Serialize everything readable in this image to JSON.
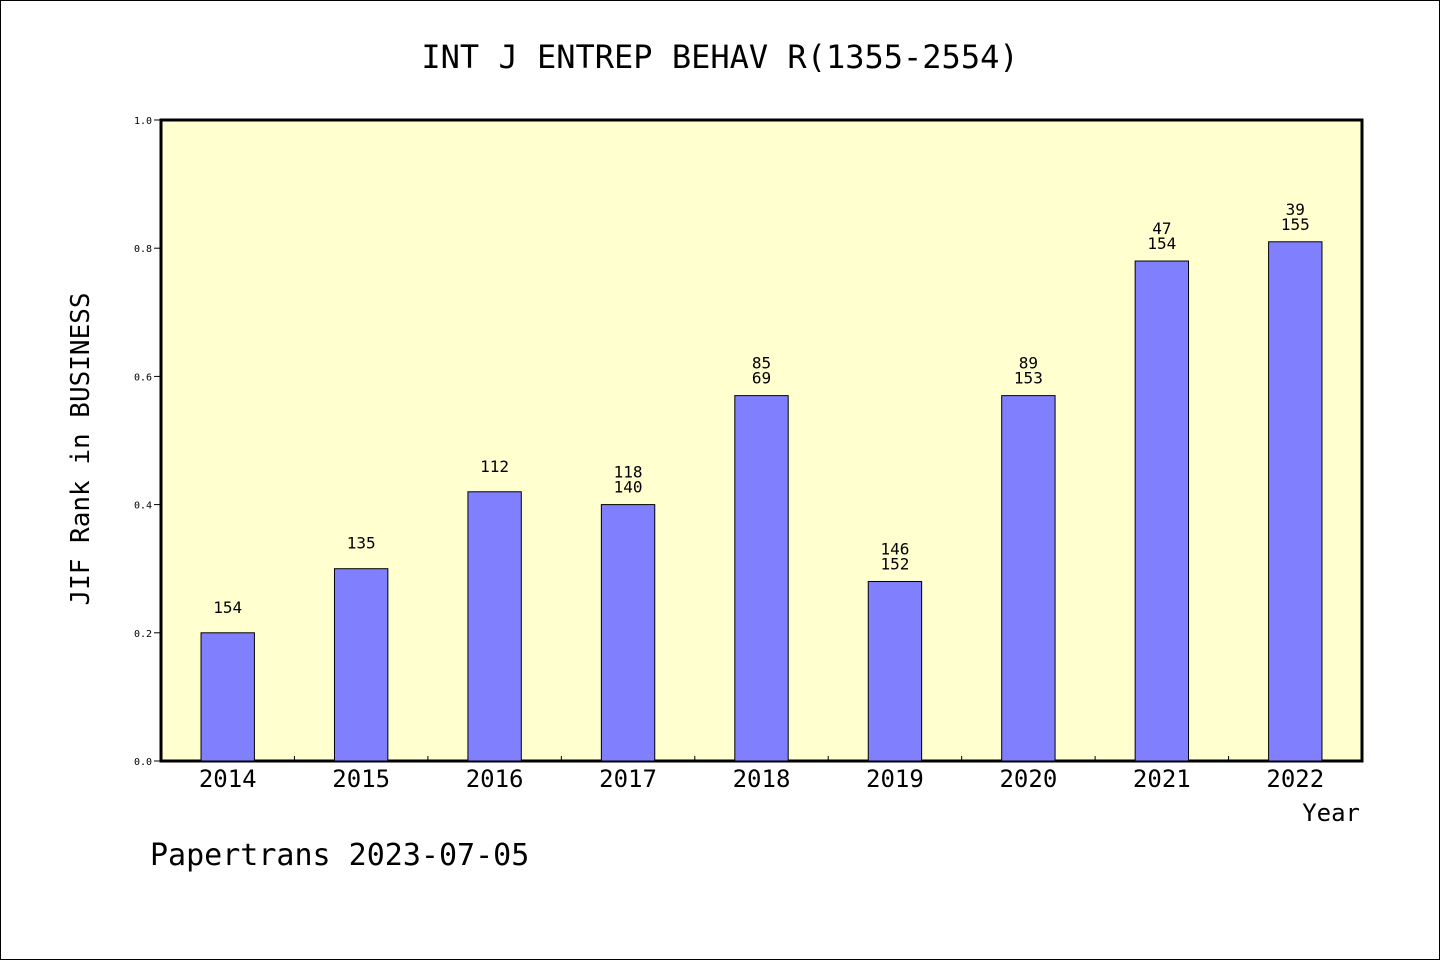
{
  "chart_data": {
    "type": "bar",
    "title": "INT J ENTREP BEHAV R(1355-2554)",
    "xlabel": "Year",
    "ylabel": "JIF Rank in BUSINESS",
    "ylim": [
      0.0,
      1.0
    ],
    "yticks": [
      "0.0",
      "0.2",
      "0.4",
      "0.6",
      "0.8",
      "1.0"
    ],
    "categories": [
      "2014",
      "2015",
      "2016",
      "2017",
      "2018",
      "2019",
      "2020",
      "2021",
      "2022"
    ],
    "values": [
      0.2,
      0.3,
      0.42,
      0.4,
      0.57,
      0.28,
      0.57,
      0.78,
      0.81
    ],
    "labels": [
      [
        "154"
      ],
      [
        "135"
      ],
      [
        "112"
      ],
      [
        "118",
        "140"
      ],
      [
        "85",
        "69"
      ],
      [
        "146",
        "152"
      ],
      [
        "89",
        "153"
      ],
      [
        "47",
        "154"
      ],
      [
        "39",
        "155"
      ]
    ],
    "grid": false,
    "colors": {
      "plot_background": "#ffffd0",
      "bar_fill": "#8080ff",
      "bar_stroke": "#000000"
    }
  },
  "footer": "Papertrans 2023-07-05"
}
